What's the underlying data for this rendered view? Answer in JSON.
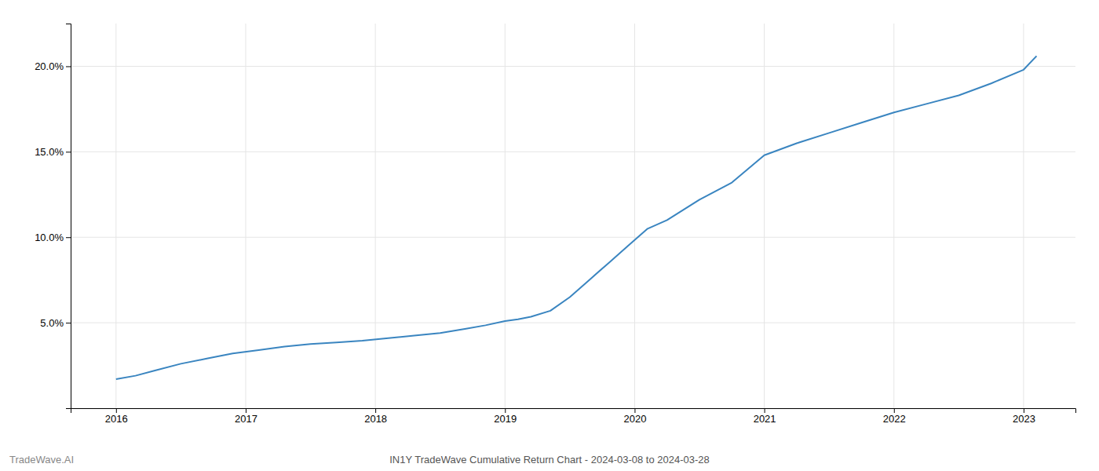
{
  "chart_data": {
    "type": "line",
    "title": "IN1Y TradeWave Cumulative Return Chart - 2024-03-08 to 2024-03-28",
    "annotations": [
      "TradeWave.AI"
    ],
    "x": [
      2016.0,
      2016.15,
      2016.3,
      2016.5,
      2016.7,
      2016.9,
      2017.1,
      2017.3,
      2017.5,
      2017.7,
      2017.9,
      2018.1,
      2018.3,
      2018.5,
      2018.7,
      2018.85,
      2019.0,
      2019.1,
      2019.2,
      2019.35,
      2019.5,
      2019.65,
      2019.8,
      2019.95,
      2020.1,
      2020.25,
      2020.5,
      2020.75,
      2021.0,
      2021.25,
      2021.5,
      2021.75,
      2022.0,
      2022.25,
      2022.5,
      2022.75,
      2023.0,
      2023.1
    ],
    "values": [
      1.7,
      1.9,
      2.2,
      2.6,
      2.9,
      3.2,
      3.4,
      3.6,
      3.75,
      3.85,
      3.95,
      4.1,
      4.25,
      4.4,
      4.65,
      4.85,
      5.1,
      5.2,
      5.35,
      5.7,
      6.5,
      7.5,
      8.5,
      9.5,
      10.5,
      11.0,
      12.2,
      13.2,
      14.8,
      15.5,
      16.1,
      16.7,
      17.3,
      17.8,
      18.3,
      19.0,
      19.8,
      20.6
    ],
    "color": "#3a85c0",
    "xlim": [
      2015.65,
      2023.4
    ],
    "ylim": [
      0,
      22.5
    ],
    "xticks": [
      2016,
      2017,
      2018,
      2019,
      2020,
      2021,
      2022,
      2023
    ],
    "yticks": [
      {
        "value": 5.0,
        "label": "5.0%"
      },
      {
        "value": 10.0,
        "label": "10.0%"
      },
      {
        "value": 15.0,
        "label": "15.0%"
      },
      {
        "value": 20.0,
        "label": "20.0%"
      }
    ],
    "grid": true
  }
}
